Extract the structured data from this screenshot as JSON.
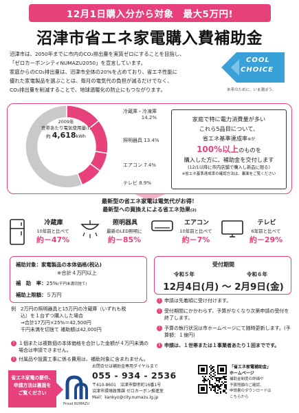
{
  "banner": "12月1日購入分から対象　最大5万円!",
  "title": "沼津市省エネ家電購入費補助金",
  "intro": [
    "沼津市は、2050年までに市内のCO₂排出量を実質ゼロにすることを目指し、",
    "「ゼロカーボンシティNUMAZU2050」を宣言しています。",
    "家庭からのCO₂排出量は、沼津市全体の20%を占めており、省エネ性能に",
    "優れた家電製品を選ぶことは、毎月の電気代の負担が減るだけでなく、",
    "CO₂排出量を削減することで、地球温暖化の防止にもつながります。"
  ],
  "cool_choice": {
    "line1": "COOL",
    "line2": "CHOICE",
    "tagline": "未来のために、いま選ぼう。"
  },
  "chart_data": {
    "type": "pie",
    "center_title_1": "2009年",
    "center_title_2": "世帯あたり電気使用量",
    "center_title_note": "(1)",
    "center_value_prefix": "約",
    "center_value": "4,618",
    "center_unit": "kWh",
    "slices": [
      {
        "name": "冷蔵庫・冷凍庫",
        "value": 14.2,
        "label": "14.2%"
      },
      {
        "name": "照明器具",
        "value": 13.4,
        "label": "13.4%"
      },
      {
        "name": "エアコン",
        "value": 7.4,
        "label": "7.4%"
      },
      {
        "name": "テレビ",
        "value": 8.9,
        "label": "8.9%"
      },
      {
        "name": "",
        "value": 56.1,
        "label": ""
      }
    ],
    "colors": [
      "#e6417a",
      "#e6417a",
      "#e6417a",
      "#e6417a",
      "#c9c9c9"
    ]
  },
  "callout": {
    "line1": "家庭で特に電力消費量が多い",
    "line2": "これら5品目について、",
    "line3": "省エネ基準達成率",
    "line3_note": "※が",
    "highlight": "100%以上",
    "line4_rest": "のものを",
    "line5": "購入した方に、補助金を交付します",
    "line6": "(12/1以降に市内店舗で購入し新品に限る)",
    "line7": "※省エネ基準達成率の確認方法は、裏面をご覧ください"
  },
  "section": {
    "heading1": "最新型の省エネ家電は電気代がお得！",
    "heading2": "最新型への買換えによる省エネ効果",
    "heading2_note": "(2)"
  },
  "appliances": [
    {
      "name": "冷蔵庫",
      "sub": "10年前と比べて",
      "value": "約－47%"
    },
    {
      "name": "照明器具",
      "sub": "最新のLED照明に",
      "value": "約－85%"
    },
    {
      "name": "エアコン",
      "sub": "10年前と比べて",
      "value": "約－7%"
    },
    {
      "name": "テレビ",
      "sub": "6年前と比べて",
      "value": "約－29%"
    }
  ],
  "subsidy": {
    "target_label": "補助対象：",
    "target_value": "家電製品の本体価格(税込)",
    "target_note": "※合計４万円以上",
    "rate_label": "補　助　率：",
    "rate_value": "25%",
    "rate_note": "(千円未満切捨て)",
    "cap_label": "補助上限額：",
    "cap_value": "５万円"
  },
  "example": {
    "label": "例",
    "lines": [
      "2万円の照明器具と15万円の冷蔵庫（いずれも税",
      "込）を１台ずつ購入した場合",
      "⇒合計17万円×25%＝42,500円",
      "千円未満を切捨て 補助額は42,000円"
    ]
  },
  "notes_left": [
    "１個または複数個の本体価格を合計した金額が４万円未満の場合は申請できません。",
    "付属品や設置工事に係る費用は、補助対象に含まれません。"
  ],
  "period": {
    "title": "受付期間",
    "year1": "令和５年",
    "year2": "令和６年",
    "dates": "12月4日(月) ～ 2月9日(金)"
  },
  "notes_right": [
    "申請は先着順に受け付けます。",
    "受付期間にかかわらず、予算がなくなり次第申請の受付を終了します。",
    "予算の執行状況は市ホームページにて随時更新します。(予算額：１億円)",
    "申請は、１世帯または１事業者あたり１回までです。"
  ],
  "footer": {
    "left_box": [
      "省エネ家電の要件、",
      "申請方法は裏面を",
      "ご覧ください"
    ],
    "logo_caption": "Proud NUMAZU",
    "contact_intro": "お問合せは補助金専用ダイヤルまで",
    "phone": "055 - 934 - 2536",
    "address": "〒410-8601　沼津市御幸町16番1号",
    "office": "沼津市環境政策課 ゼロカーボン推進室",
    "mail": "Mail：kankyo@city.numazu.lg.jp",
    "hp_title": "「省エネ家電補助金」",
    "hp_title2": "ホームページ",
    "hp_text": [
      "補助金制度の詳細や",
      "予算残額のご確認、",
      "申請書のダウンロードは",
      "こちらから"
    ]
  }
}
